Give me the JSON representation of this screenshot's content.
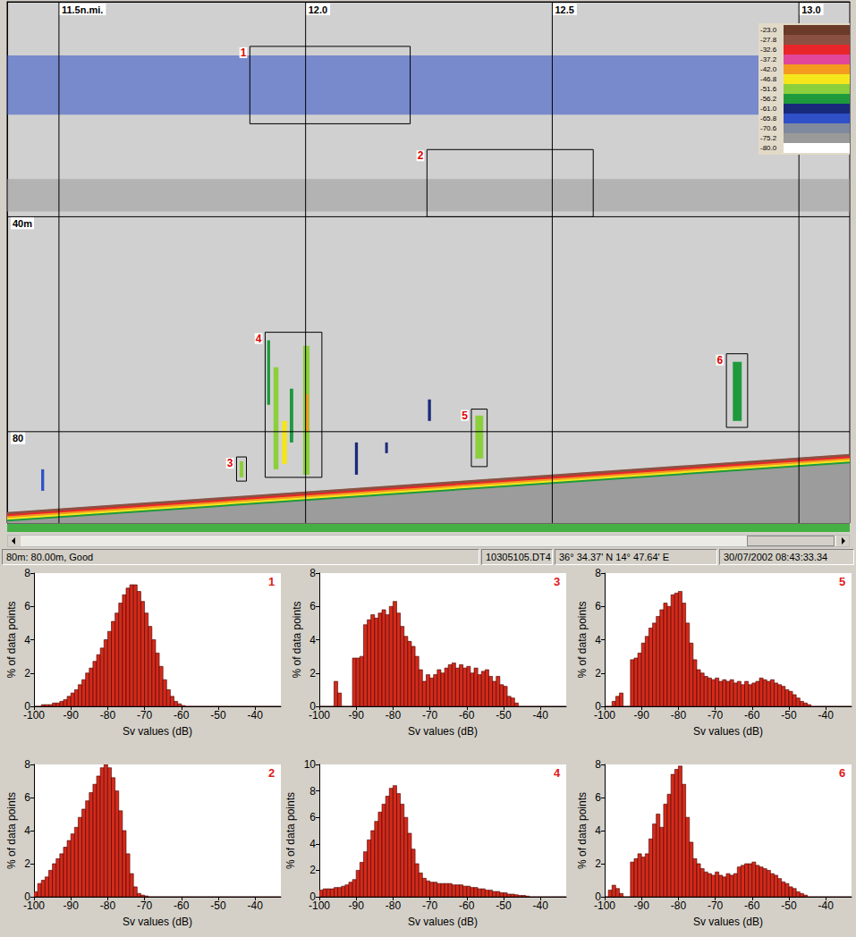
{
  "chart_data": [
    {
      "type": "echogram",
      "xlim": [
        11.395,
        13.103
      ],
      "ylim": [
        0,
        97
      ],
      "xticks": [
        {
          "value": 11.5,
          "label": "11.5n.mi."
        },
        {
          "value": 12,
          "label": "12.0"
        },
        {
          "value": 12.5,
          "label": "12.5"
        },
        {
          "value": 13,
          "label": "13.0"
        }
      ],
      "yticks": [
        {
          "value": 40,
          "label": "40m"
        },
        {
          "value": 80,
          "label": "80"
        }
      ],
      "grid": true,
      "color_scale": {
        "ticks": [
          {
            "value": -23,
            "label": "-23.0"
          },
          -27.8,
          -32.6,
          -37.2,
          {
            "value": -42,
            "label": "-42.0"
          },
          -46.8,
          -51.6,
          -56.2,
          {
            "value": -61,
            "label": "-61.0"
          },
          -65.8,
          -70.6,
          -75.2,
          {
            "value": -80,
            "label": "-80.0"
          }
        ],
        "colors": [
          "#6b3a28",
          "#8a5142",
          "#e8262a",
          "#e0479a",
          "#f39a1f",
          "#f5e61c",
          "#8ccf3c",
          "#1e9a3c",
          "#1a2a7a",
          "#3050c8",
          "#7f8a9e",
          "#9a9a9a",
          "#ffffff"
        ]
      },
      "scattering_layers": [
        {
          "depth": [
            10,
            21
          ],
          "sv": -65.8
        },
        {
          "depth": [
            33,
            39
          ],
          "sv": -75.2
        }
      ],
      "seabed": {
        "x": [
          11.395,
          13.103
        ],
        "depth": [
          95,
          84.2
        ]
      },
      "boxes": [
        {
          "label": "1",
          "x": [
            11.887,
            12.212
          ],
          "depth": [
            8.3,
            22.7
          ]
        },
        {
          "label": "2",
          "x": [
            12.246,
            12.583
          ],
          "depth": [
            27.5,
            40
          ]
        },
        {
          "label": "3",
          "x": [
            11.86,
            11.88
          ],
          "depth": [
            84.7,
            89.2
          ]
        },
        {
          "label": "4",
          "x": [
            11.918,
            12.033
          ],
          "depth": [
            61.5,
            88.5
          ]
        },
        {
          "label": "5",
          "x": [
            12.336,
            12.368
          ],
          "depth": [
            75.8,
            86.5
          ]
        },
        {
          "label": "6",
          "x": [
            12.853,
            12.896
          ],
          "depth": [
            65.5,
            79.2
          ]
        }
      ],
      "schools": [
        {
          "x": [
            11.922,
            11.928
          ],
          "depth": [
            63,
            75
          ],
          "sv": -56.2
        },
        {
          "x": [
            11.935,
            11.945
          ],
          "depth": [
            68,
            87
          ],
          "sv": -51.6
        },
        {
          "x": [
            11.952,
            11.962
          ],
          "depth": [
            78,
            86
          ],
          "sv": -46.8
        },
        {
          "x": [
            11.968,
            11.975
          ],
          "depth": [
            72,
            82
          ],
          "sv": -56.2
        },
        {
          "x": [
            11.995,
            12.008
          ],
          "depth": [
            64,
            88
          ],
          "sv": -51.6
        },
        {
          "x": [
            12.0,
            12.006
          ],
          "depth": [
            73,
            80
          ],
          "sv": -42.0
        },
        {
          "x": [
            11.866,
            11.874
          ],
          "depth": [
            85.5,
            88.5
          ],
          "sv": -51.6
        },
        {
          "x": [
            12.344,
            12.36
          ],
          "depth": [
            77,
            85
          ],
          "sv": -51.6
        },
        {
          "x": [
            12.866,
            12.884
          ],
          "depth": [
            67,
            78
          ],
          "sv": -56.2
        },
        {
          "x": [
            12.248,
            12.254
          ],
          "depth": [
            74,
            78
          ],
          "sv": -61.0
        },
        {
          "x": [
            12.1,
            12.106
          ],
          "depth": [
            82,
            88
          ],
          "sv": -61.0
        },
        {
          "x": [
            11.464,
            11.47
          ],
          "depth": [
            87,
            91
          ],
          "sv": -65.8
        },
        {
          "x": [
            12.162,
            12.166
          ],
          "depth": [
            82,
            84
          ],
          "sv": -61.0
        }
      ]
    },
    {
      "type": "histogram",
      "title": "1",
      "x_label": "Sv values (dB)",
      "y_label": "% of data points",
      "color": "#d42a1a",
      "xlim": [
        -100,
        -33
      ],
      "xticks": [
        -100,
        -90,
        -80,
        -70,
        -60,
        -50,
        -40
      ],
      "ylim": [
        0,
        8
      ],
      "yticks": [
        0,
        2,
        4,
        6,
        8
      ],
      "bins": [
        -100,
        -99,
        -98,
        -97,
        -96,
        -95,
        -94,
        -93,
        -92,
        -91,
        -90,
        -89,
        -88,
        -87,
        -86,
        -85,
        -84,
        -83,
        -82,
        -81,
        -80,
        -79,
        -78,
        -77,
        -76,
        -75,
        -74,
        -73,
        -72,
        -71,
        -70,
        -69,
        -68,
        -67,
        -66,
        -65,
        -64,
        -63,
        -62,
        -61,
        -60,
        -59,
        -58,
        -57,
        -56,
        -55,
        -54,
        -53,
        -52,
        -51,
        -50,
        -49,
        -48,
        -47,
        -46,
        -45,
        -44,
        -43,
        -42,
        -41,
        -40,
        -39,
        -38,
        -37,
        -36,
        -35,
        -34,
        -33
      ],
      "values": [
        0,
        0,
        0.1,
        0.1,
        0.1,
        0.2,
        0.2,
        0.3,
        0.4,
        0.6,
        0.8,
        1.0,
        1.3,
        1.6,
        2.0,
        2.3,
        2.7,
        3.1,
        3.5,
        4.0,
        4.5,
        5.1,
        5.6,
        6.2,
        6.7,
        7.1,
        7.3,
        7.3,
        6.9,
        6.3,
        5.6,
        4.8,
        4.0,
        3.2,
        2.4,
        1.6,
        1.0,
        0.6,
        0.3,
        0.15,
        0.05,
        0,
        0,
        0,
        0,
        0,
        0,
        0,
        0,
        0,
        0,
        0,
        0,
        0,
        0,
        0,
        0,
        0,
        0,
        0,
        0,
        0,
        0,
        0,
        0,
        0,
        0
      ]
    },
    {
      "type": "histogram",
      "title": "2",
      "x_label": "Sv values (dB)",
      "y_label": "% of data points",
      "color": "#d42a1a",
      "xlim": [
        -100,
        -33
      ],
      "xticks": [
        -100,
        -90,
        -80,
        -70,
        -60,
        -50,
        -40
      ],
      "ylim": [
        0,
        8
      ],
      "yticks": [
        0,
        2,
        4,
        6,
        8
      ],
      "bins": [
        -100,
        -99,
        -98,
        -97,
        -96,
        -95,
        -94,
        -93,
        -92,
        -91,
        -90,
        -89,
        -88,
        -87,
        -86,
        -85,
        -84,
        -83,
        -82,
        -81,
        -80,
        -79,
        -78,
        -77,
        -76,
        -75,
        -74,
        -73,
        -72,
        -71,
        -70,
        -69,
        -68,
        -67,
        -66,
        -65,
        -64,
        -63,
        -62,
        -61,
        -60,
        -59,
        -58,
        -57,
        -56,
        -55,
        -54,
        -53,
        -52,
        -51,
        -50,
        -49,
        -48,
        -47,
        -46,
        -45,
        -44,
        -43,
        -42,
        -41,
        -40,
        -39,
        -38,
        -37,
        -36,
        -35,
        -34,
        -33
      ],
      "values": [
        0.3,
        0.8,
        1.0,
        1.2,
        1.6,
        2.0,
        2.3,
        2.6,
        3.0,
        3.4,
        3.8,
        4.2,
        4.8,
        5.3,
        5.8,
        6.3,
        6.8,
        7.3,
        7.8,
        8.0,
        7.8,
        7.2,
        6.4,
        5.2,
        4.0,
        2.6,
        1.4,
        0.6,
        0.2,
        0.1,
        0.05,
        0,
        0,
        0,
        0,
        0,
        0,
        0,
        0,
        0,
        0,
        0,
        0,
        0,
        0,
        0,
        0,
        0,
        0,
        0,
        0,
        0,
        0,
        0,
        0,
        0,
        0,
        0,
        0,
        0,
        0,
        0,
        0,
        0,
        0,
        0,
        0
      ]
    },
    {
      "type": "histogram",
      "title": "3",
      "x_label": "Sv values (dB)",
      "y_label": "% of data points",
      "color": "#d42a1a",
      "xlim": [
        -100,
        -33
      ],
      "xticks": [
        -100,
        -90,
        -80,
        -70,
        -60,
        -50,
        -40
      ],
      "ylim": [
        0,
        8
      ],
      "yticks": [
        0,
        2,
        4,
        6,
        8
      ],
      "bins": [
        -100,
        -99,
        -98,
        -97,
        -96,
        -95,
        -94,
        -93,
        -92,
        -91,
        -90,
        -89,
        -88,
        -87,
        -86,
        -85,
        -84,
        -83,
        -82,
        -81,
        -80,
        -79,
        -78,
        -77,
        -76,
        -75,
        -74,
        -73,
        -72,
        -71,
        -70,
        -69,
        -68,
        -67,
        -66,
        -65,
        -64,
        -63,
        -62,
        -61,
        -60,
        -59,
        -58,
        -57,
        -56,
        -55,
        -54,
        -53,
        -52,
        -51,
        -50,
        -49,
        -48,
        -47,
        -46,
        -45,
        -44,
        -43,
        -42,
        -41,
        -40,
        -39,
        -38,
        -37,
        -36,
        -35,
        -34,
        -33
      ],
      "values": [
        0,
        0,
        0,
        0,
        1.5,
        0.8,
        0,
        0,
        0,
        2.9,
        2.9,
        3.0,
        4.9,
        5.2,
        5.5,
        5.3,
        5.6,
        5.8,
        5.5,
        6.0,
        6.3,
        5.6,
        4.8,
        4.2,
        3.9,
        3.6,
        3.0,
        2.2,
        1.5,
        1.9,
        1.7,
        1.9,
        2.2,
        2.0,
        2.3,
        2.5,
        2.6,
        2.3,
        2.5,
        2.3,
        2.4,
        2.0,
        2.3,
        1.9,
        2.1,
        2.2,
        1.8,
        1.5,
        1.8,
        1.3,
        1.2,
        0.6,
        0.5,
        0.2,
        0,
        0,
        0,
        0,
        0,
        0,
        0,
        0,
        0,
        0,
        0,
        0,
        0
      ]
    },
    {
      "type": "histogram",
      "title": "4",
      "x_label": "Sv values (dB)",
      "y_label": "% of data points",
      "color": "#d42a1a",
      "xlim": [
        -100,
        -33
      ],
      "xticks": [
        -100,
        -90,
        -80,
        -70,
        -60,
        -50,
        -40
      ],
      "ylim": [
        0,
        10
      ],
      "yticks": [
        0,
        2,
        4,
        6,
        8,
        10
      ],
      "bins": [
        -100,
        -99,
        -98,
        -97,
        -96,
        -95,
        -94,
        -93,
        -92,
        -91,
        -90,
        -89,
        -88,
        -87,
        -86,
        -85,
        -84,
        -83,
        -82,
        -81,
        -80,
        -79,
        -78,
        -77,
        -76,
        -75,
        -74,
        -73,
        -72,
        -71,
        -70,
        -69,
        -68,
        -67,
        -66,
        -65,
        -64,
        -63,
        -62,
        -61,
        -60,
        -59,
        -58,
        -57,
        -56,
        -55,
        -54,
        -53,
        -52,
        -51,
        -50,
        -49,
        -48,
        -47,
        -46,
        -45,
        -44,
        -43,
        -42,
        -41,
        -40,
        -39,
        -38,
        -37,
        -36,
        -35,
        -34,
        -33
      ],
      "values": [
        0.5,
        0.6,
        0.6,
        0.6,
        0.7,
        0.7,
        0.8,
        0.9,
        1.1,
        1.3,
        2.0,
        2.6,
        3.4,
        4.3,
        5.0,
        5.7,
        6.4,
        7.0,
        7.6,
        8.2,
        8.4,
        7.8,
        7.0,
        6.0,
        4.8,
        3.6,
        2.5,
        1.8,
        1.4,
        1.2,
        1.1,
        1.1,
        1.0,
        1.0,
        1.0,
        1.0,
        0.9,
        0.9,
        0.9,
        0.8,
        0.8,
        0.7,
        0.7,
        0.6,
        0.6,
        0.5,
        0.5,
        0.4,
        0.4,
        0.3,
        0.3,
        0.2,
        0.2,
        0.15,
        0.1,
        0.1,
        0.05,
        0,
        0,
        0,
        0,
        0,
        0,
        0,
        0,
        0,
        0
      ]
    },
    {
      "type": "histogram",
      "title": "5",
      "x_label": "Sv values (dB)",
      "y_label": "% of data points",
      "color": "#d42a1a",
      "xlim": [
        -100,
        -33
      ],
      "xticks": [
        -100,
        -90,
        -80,
        -70,
        -60,
        -50,
        -40
      ],
      "ylim": [
        0,
        8
      ],
      "yticks": [
        0,
        2,
        4,
        6,
        8
      ],
      "bins": [
        -100,
        -99,
        -98,
        -97,
        -96,
        -95,
        -94,
        -93,
        -92,
        -91,
        -90,
        -89,
        -88,
        -87,
        -86,
        -85,
        -84,
        -83,
        -82,
        -81,
        -80,
        -79,
        -78,
        -77,
        -76,
        -75,
        -74,
        -73,
        -72,
        -71,
        -70,
        -69,
        -68,
        -67,
        -66,
        -65,
        -64,
        -63,
        -62,
        -61,
        -60,
        -59,
        -58,
        -57,
        -56,
        -55,
        -54,
        -53,
        -52,
        -51,
        -50,
        -49,
        -48,
        -47,
        -46,
        -45,
        -44,
        -43,
        -42,
        -41,
        -40,
        -39,
        -38,
        -37,
        -36,
        -35,
        -34,
        -33
      ],
      "values": [
        0,
        0,
        0.3,
        0.6,
        0.8,
        0,
        0,
        2.8,
        2.9,
        3.2,
        3.8,
        4.2,
        4.7,
        5.0,
        5.4,
        5.8,
        6.2,
        6.0,
        6.7,
        6.8,
        6.9,
        6.2,
        5.0,
        3.8,
        2.8,
        2.2,
        2.0,
        1.8,
        1.7,
        1.6,
        1.7,
        1.5,
        1.6,
        1.5,
        1.6,
        1.4,
        1.5,
        1.3,
        1.5,
        1.3,
        1.4,
        1.5,
        1.7,
        1.6,
        1.5,
        1.6,
        1.4,
        1.3,
        1.2,
        1.0,
        0.9,
        0.7,
        0.5,
        0.3,
        0.2,
        0.1,
        0,
        0,
        0,
        0,
        0,
        0,
        0,
        0,
        0,
        0,
        0
      ]
    },
    {
      "type": "histogram",
      "title": "6",
      "x_label": "Sv values (dB)",
      "y_label": "% of data points",
      "color": "#d42a1a",
      "xlim": [
        -100,
        -33
      ],
      "xticks": [
        -100,
        -90,
        -80,
        -70,
        -60,
        -50,
        -40
      ],
      "ylim": [
        0,
        8
      ],
      "yticks": [
        0,
        2,
        4,
        6,
        8
      ],
      "bins": [
        -100,
        -99,
        -98,
        -97,
        -96,
        -95,
        -94,
        -93,
        -92,
        -91,
        -90,
        -89,
        -88,
        -87,
        -86,
        -85,
        -84,
        -83,
        -82,
        -81,
        -80,
        -79,
        -78,
        -77,
        -76,
        -75,
        -74,
        -73,
        -72,
        -71,
        -70,
        -69,
        -68,
        -67,
        -66,
        -65,
        -64,
        -63,
        -62,
        -61,
        -60,
        -59,
        -58,
        -57,
        -56,
        -55,
        -54,
        -53,
        -52,
        -51,
        -50,
        -49,
        -48,
        -47,
        -46,
        -45,
        -44,
        -43,
        -42,
        -41,
        -40,
        -39,
        -38,
        -37,
        -36,
        -35,
        -34,
        -33
      ],
      "values": [
        0,
        0.4,
        0.7,
        0.5,
        0.2,
        0,
        0,
        2.1,
        2.3,
        2.6,
        2.4,
        2.6,
        3.5,
        4.4,
        5.0,
        4.2,
        5.6,
        6.2,
        7.4,
        7.7,
        7.9,
        6.8,
        4.8,
        3.3,
        2.3,
        2.0,
        1.7,
        1.5,
        1.4,
        1.3,
        1.5,
        1.3,
        1.2,
        1.4,
        1.3,
        1.4,
        1.8,
        1.9,
        2.0,
        2.0,
        2.1,
        1.9,
        1.8,
        1.7,
        1.6,
        1.4,
        1.3,
        1.1,
        0.9,
        0.8,
        0.6,
        0.5,
        0.3,
        0.2,
        0.1,
        0,
        0,
        0,
        0,
        0,
        0,
        0,
        0,
        0,
        0,
        0,
        0
      ]
    }
  ],
  "status_bar": {
    "cells": [
      "80m: 80.00m, Good",
      "10305105.DT4",
      "36° 34.37' N 14° 47.64' E",
      "30/07/2002 08:43:33.34"
    ]
  }
}
